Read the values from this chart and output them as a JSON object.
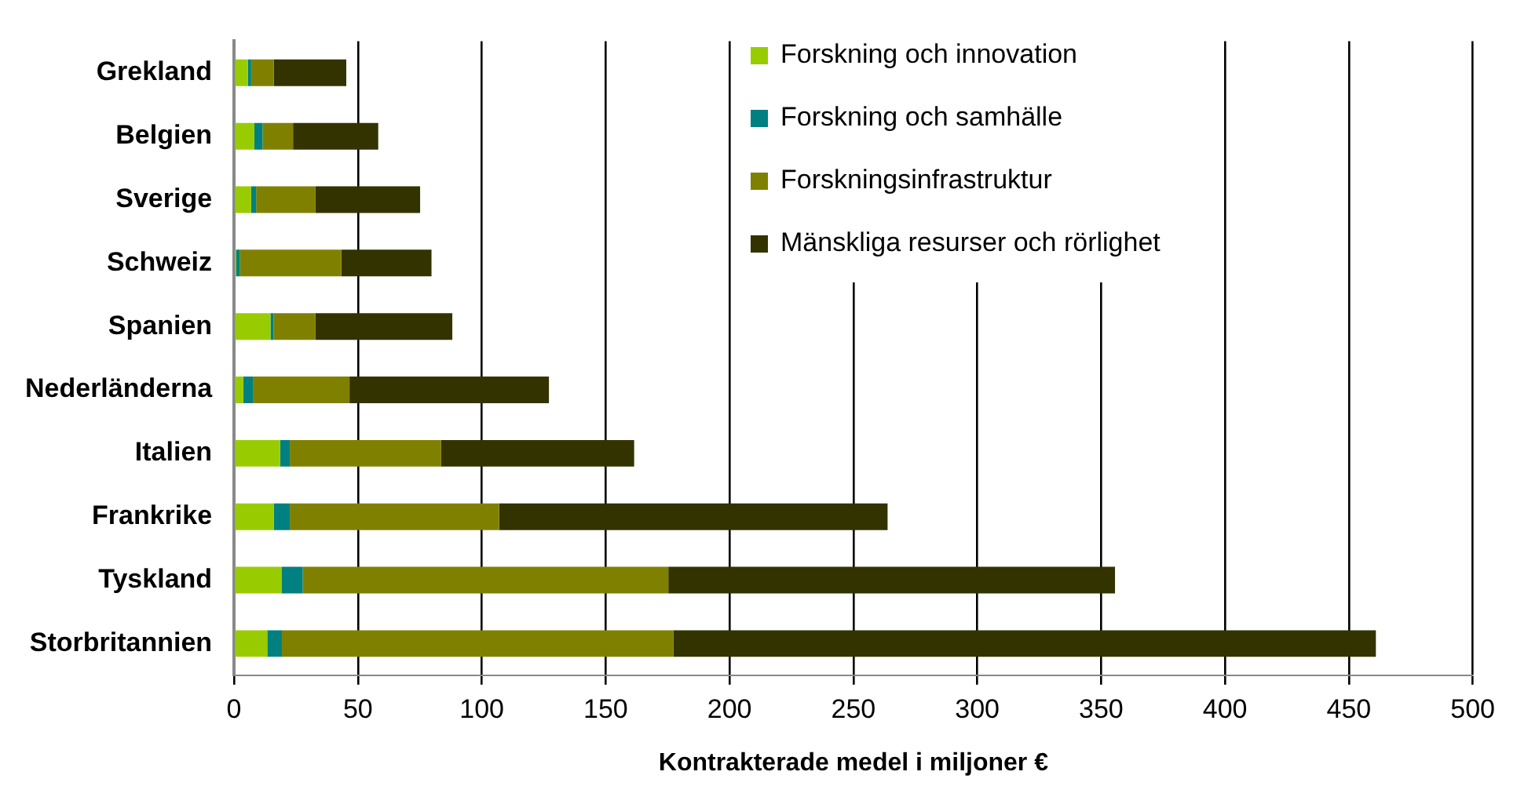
{
  "chart_data": {
    "type": "bar",
    "orientation": "horizontal",
    "stacked": true,
    "xlabel": "Kontrakterade medel i miljoner €",
    "categories": [
      "Grekland",
      "Belgien",
      "Sverige",
      "Schweiz",
      "Spanien",
      "Nederländerna",
      "Italien",
      "Frankrike",
      "Tyskland",
      "Storbritannien"
    ],
    "series": [
      {
        "name": "Forskning och innovation",
        "color": "#99cc00",
        "values": [
          5.6,
          8.2,
          6.9,
          0.9,
          14.7,
          3.7,
          18.6,
          16,
          19.3,
          13.4
        ]
      },
      {
        "name": "Forskning och samhälle",
        "color": "#008080",
        "values": [
          1.3,
          3.3,
          2,
          1.5,
          1.3,
          3.9,
          3.9,
          6.5,
          8.4,
          5.9
        ]
      },
      {
        "name": "Forskningsinfrastruktur",
        "color": "#808000",
        "values": [
          9.1,
          12.3,
          24,
          40.9,
          16.9,
          39,
          61.1,
          84.5,
          147.6,
          158
        ]
      },
      {
        "name": "Mänskliga resurser och rörlighet",
        "color": "#333300",
        "values": [
          29.3,
          34.4,
          42.2,
          36.4,
          55.2,
          80.5,
          77.9,
          156.8,
          180.3,
          283.6
        ]
      }
    ],
    "xlim": [
      0,
      500
    ],
    "xticks": [
      0,
      50,
      100,
      150,
      200,
      250,
      300,
      350,
      400,
      450,
      500
    ],
    "grid": "x",
    "legend": "top right"
  }
}
